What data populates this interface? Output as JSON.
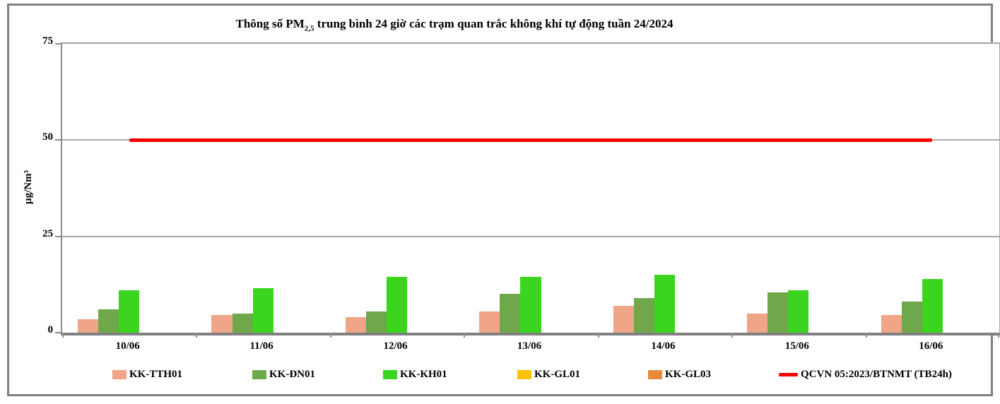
{
  "title": {
    "prefix": "Thông số PM",
    "subscript": "2,5",
    "suffix": " trung bình 24 giờ các trạm quan trắc không khí tự động tuần 24/2024"
  },
  "axes": {
    "y_title": "µg/Nm³"
  },
  "chart_data": {
    "type": "bar",
    "title": "Thông số PM2,5 trung bình 24 giờ các trạm quan trắc không khí tự động tuần 24/2024",
    "categories": [
      "10/06",
      "11/06",
      "12/06",
      "13/06",
      "14/06",
      "15/06",
      "16/06"
    ],
    "series": [
      {
        "name": "KK-TTH01",
        "color": "#F0A488",
        "values": [
          3.5,
          4.5,
          4,
          5.5,
          7,
          5,
          4.5
        ]
      },
      {
        "name": "KK-ĐN01",
        "color": "#6EA84A",
        "values": [
          6,
          5,
          5.5,
          10,
          9,
          10.5,
          8
        ]
      },
      {
        "name": "KK-KH01",
        "color": "#3BD51F",
        "values": [
          11,
          11.5,
          14.5,
          14.5,
          15,
          11,
          14
        ]
      },
      {
        "name": "KK-GL01",
        "color": "#FFC000",
        "values": [
          null,
          null,
          null,
          null,
          null,
          null,
          null
        ]
      },
      {
        "name": "KK-GL03",
        "color": "#E78A3D",
        "values": [
          null,
          null,
          null,
          null,
          null,
          null,
          null
        ]
      }
    ],
    "limit_line": {
      "name": "QCVN 05:2023/BTNMT (TB24h)",
      "color": "#FF0000",
      "value": 50
    },
    "xlabel": "",
    "ylabel": "µg/Nm³",
    "ylim": [
      0,
      75
    ],
    "y_ticks": [
      0,
      25,
      50,
      75
    ],
    "grid_values": [
      25,
      50
    ],
    "grid": true,
    "legend_position": "bottom"
  }
}
